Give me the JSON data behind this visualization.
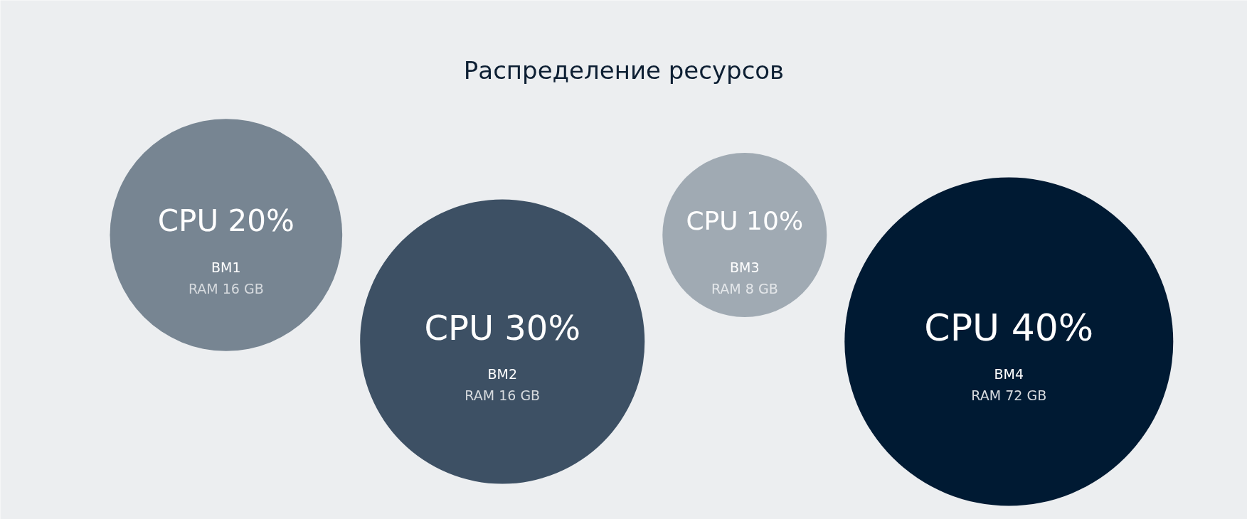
{
  "chart_data": {
    "type": "other",
    "title": "Распределение ресурсов",
    "categories": [
      "BM1",
      "BM2",
      "BM3",
      "BM4"
    ],
    "values": [
      20,
      30,
      10,
      40
    ],
    "value_labels": [
      "CPU 20%",
      "CPU 30%",
      "CPU 10%",
      "CPU 40%"
    ],
    "colors": [
      "#778592",
      "#3d5064",
      "#a0aab3",
      "#001a33"
    ],
    "annotations": [
      {
        "text": "RAM 16 GB",
        "x": "BM1"
      },
      {
        "text": "RAM 16 GB",
        "x": "BM2"
      },
      {
        "text": "RAM 8 GB",
        "x": "BM3"
      },
      {
        "text": "RAM 72 GB",
        "x": "BM4"
      }
    ]
  }
}
